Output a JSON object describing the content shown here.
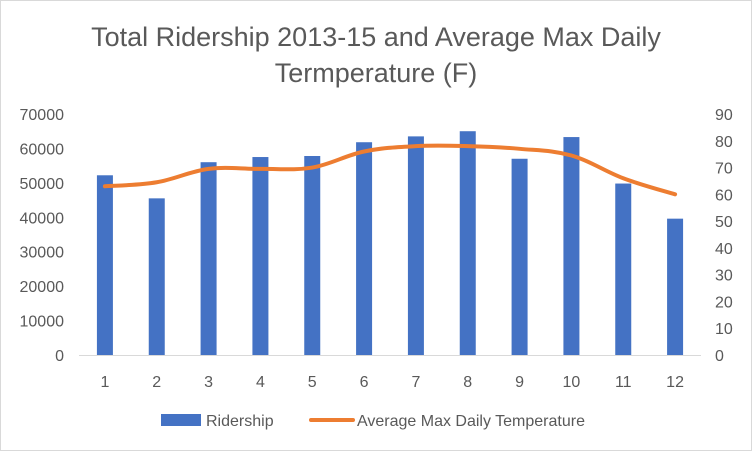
{
  "chart_data": {
    "type": "bar",
    "title_lines": [
      "Total Ridership 2013-15 and Average Max Daily",
      "Termperature  (F)"
    ],
    "categories": [
      "1",
      "2",
      "3",
      "4",
      "5",
      "6",
      "7",
      "8",
      "9",
      "10",
      "11",
      "12"
    ],
    "series": [
      {
        "name": "Ridership",
        "kind": "bar",
        "axis": "primary",
        "color": "#4472C4",
        "values": [
          52200,
          45500,
          56000,
          57500,
          57800,
          61800,
          63500,
          65000,
          57000,
          63300,
          49800,
          39600
        ]
      },
      {
        "name": "Average Max Daily Temperature",
        "kind": "line",
        "axis": "secondary",
        "color": "#ED7D31",
        "values": [
          63,
          64.5,
          69.5,
          69.5,
          70,
          76,
          78,
          78,
          77,
          74.5,
          66,
          60
        ]
      }
    ],
    "y_left": {
      "min": 0,
      "max": 70000,
      "step": 10000,
      "ticks": [
        "0",
        "10000",
        "20000",
        "30000",
        "40000",
        "50000",
        "60000",
        "70000"
      ]
    },
    "y_right": {
      "min": 0,
      "max": 90,
      "step": 10,
      "ticks": [
        "0",
        "10",
        "20",
        "30",
        "40",
        "50",
        "60",
        "70",
        "80",
        "90"
      ]
    },
    "grid": false,
    "legend_position": "bottom"
  }
}
